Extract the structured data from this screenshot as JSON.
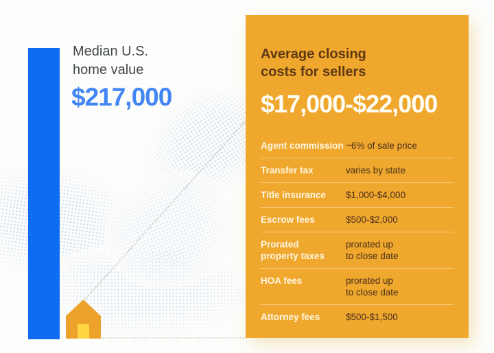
{
  "left": {
    "label_line1": "Median U.S.",
    "label_line2": "home value",
    "value": "$217,000"
  },
  "right": {
    "title_line1": "Average closing",
    "title_line2": "costs for sellers",
    "value": "$17,000-$22,000",
    "fees": [
      {
        "label": [
          "Agent commission"
        ],
        "value": [
          "~6% of sale price"
        ]
      },
      {
        "label": [
          "Transfer tax"
        ],
        "value": [
          "varies by state"
        ]
      },
      {
        "label": [
          "Title insurance"
        ],
        "value": [
          "$1,000-$4,000"
        ]
      },
      {
        "label": [
          "Escrow fees"
        ],
        "value": [
          "$500-$2,000"
        ]
      },
      {
        "label": [
          "Prorated",
          "property taxes"
        ],
        "value": [
          "prorated up",
          "to close date"
        ]
      },
      {
        "label": [
          "HOA fees"
        ],
        "value": [
          "prorated up",
          "to close date"
        ]
      },
      {
        "label": [
          "Attorney fees"
        ],
        "value": [
          "$500-$1,500"
        ]
      }
    ]
  },
  "colors": {
    "bar_blue": "#0D6CF2",
    "value_blue": "#4285F4",
    "label_gray": "#43484D",
    "panel_orange": "#F0A72E",
    "title_brown": "#5E3A13",
    "panel_value_white": "#FFFEF6",
    "fee_label_cream": "#FFF7E0",
    "fee_value_brown": "#49311A",
    "house_orange": "#EDA32B",
    "house_door_yellow": "#FFD544",
    "texture_blue": "#6C9EE6"
  },
  "chart_data": [
    {
      "type": "bar",
      "categories": [
        "Median U.S. home value"
      ],
      "values": [
        217000
      ],
      "title": "Median U.S. home value",
      "xlabel": "",
      "ylabel": "",
      "annotations": [
        "$217,000"
      ],
      "legend": false,
      "grid": false
    },
    {
      "type": "table",
      "title": "Average closing costs for sellers",
      "subtitle": "$17,000-$22,000",
      "rows": [
        [
          "Agent commission",
          "~6% of sale price"
        ],
        [
          "Transfer tax",
          "varies by state"
        ],
        [
          "Title insurance",
          "$1,000-$4,000"
        ],
        [
          "Escrow fees",
          "$500-$2,000"
        ],
        [
          "Prorated property taxes",
          "prorated up to close date"
        ],
        [
          "HOA fees",
          "prorated up to close date"
        ],
        [
          "Attorney fees",
          "$500-$1,500"
        ]
      ]
    }
  ]
}
